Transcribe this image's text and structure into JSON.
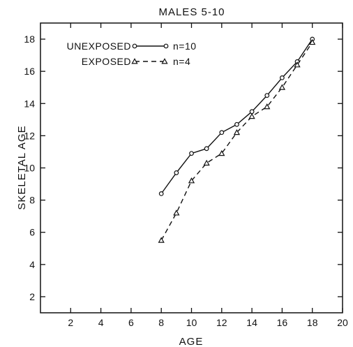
{
  "chart_data": {
    "type": "line",
    "title": "MALES 5-10",
    "xlabel": "AGE",
    "ylabel": "SKELETAL AGE",
    "xlim": [
      0,
      20
    ],
    "ylim": [
      1,
      19
    ],
    "xticks": [
      2,
      4,
      6,
      8,
      10,
      12,
      14,
      16,
      18,
      20
    ],
    "yticks": [
      2,
      4,
      6,
      8,
      10,
      12,
      14,
      16,
      18
    ],
    "grid": false,
    "legend_position": "top-left",
    "series": [
      {
        "name": "UNEXPOSED",
        "n_label": "n=10",
        "marker": "circle",
        "line_style": "solid",
        "x": [
          8,
          9,
          10,
          11,
          12,
          13,
          14,
          15,
          16,
          17,
          18
        ],
        "y": [
          8.4,
          9.7,
          10.9,
          11.2,
          12.2,
          12.7,
          13.5,
          14.5,
          15.6,
          16.6,
          18.0
        ]
      },
      {
        "name": "EXPOSED",
        "n_label": "n=4",
        "marker": "triangle",
        "line_style": "dashed",
        "x": [
          8,
          9,
          10,
          11,
          12,
          13,
          14,
          15,
          16,
          17,
          18
        ],
        "y": [
          5.5,
          7.2,
          9.2,
          10.3,
          10.9,
          12.2,
          13.2,
          13.8,
          15.0,
          16.4,
          17.8
        ]
      }
    ]
  }
}
